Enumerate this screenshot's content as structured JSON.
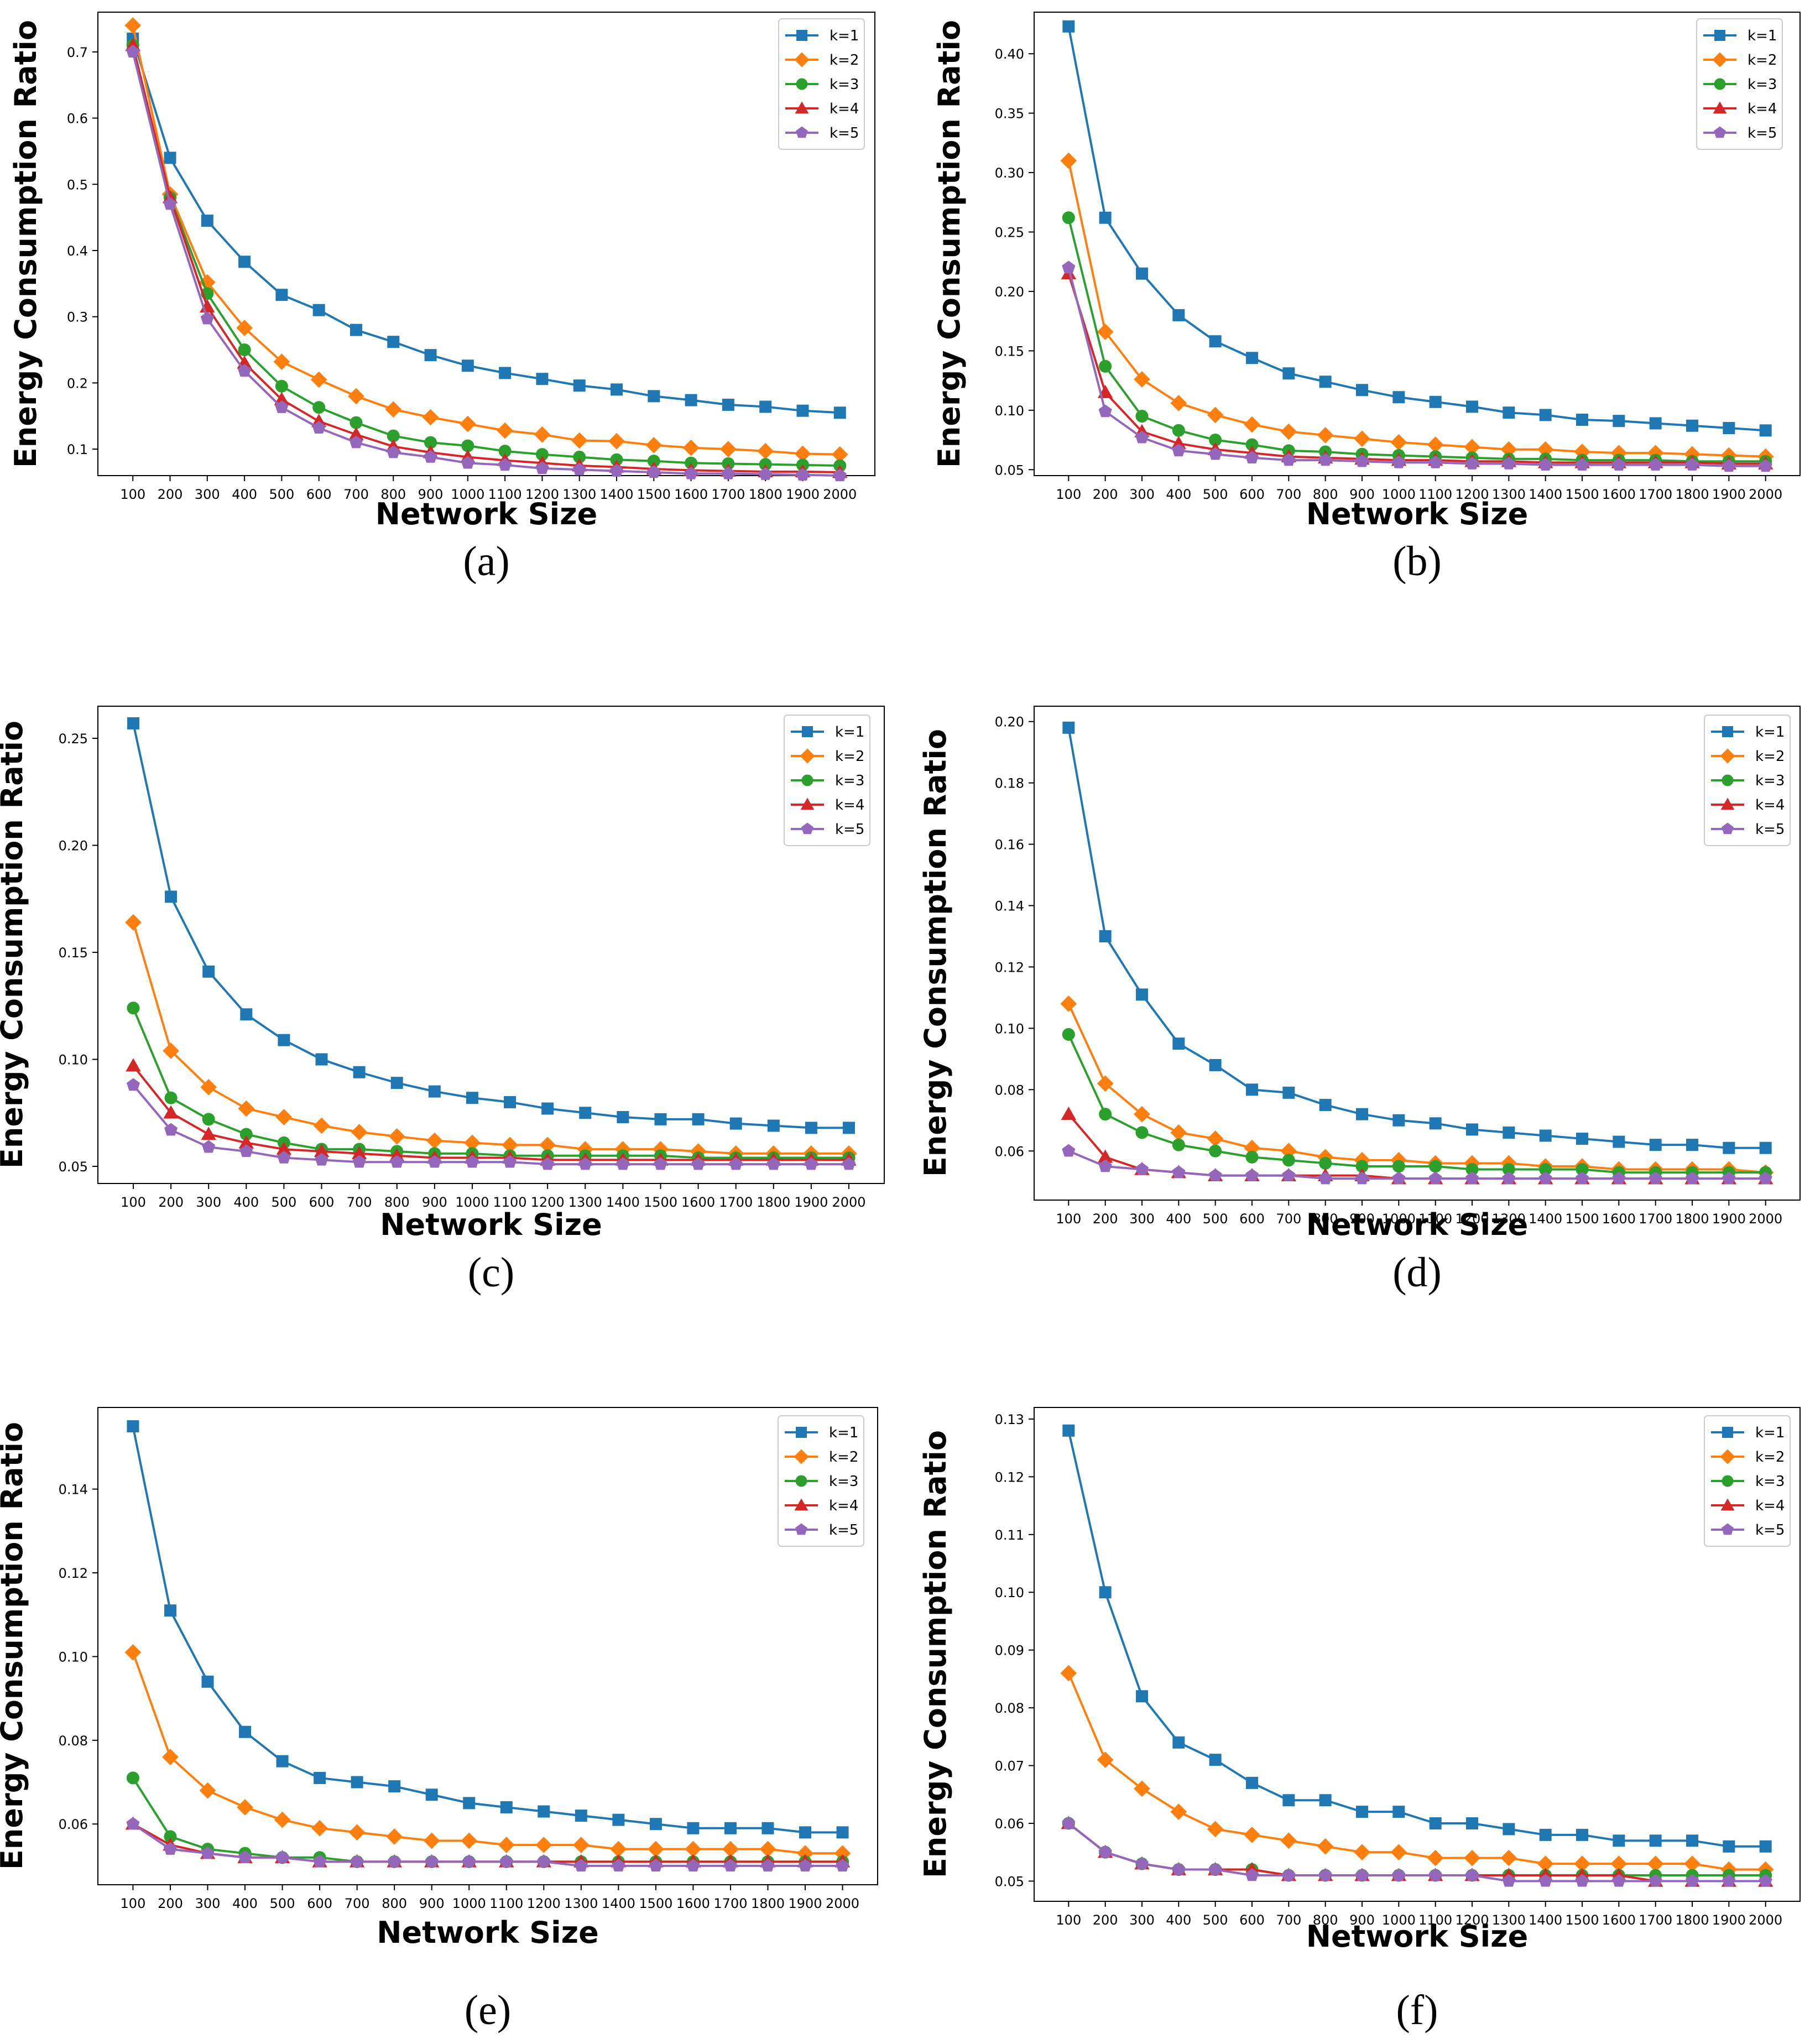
{
  "chart_data": [
    {
      "panel": "(a)",
      "type": "line",
      "xlabel": "Network Size",
      "ylabel": "Energy Consumption Ratio",
      "x": [
        100,
        200,
        300,
        400,
        500,
        600,
        700,
        800,
        900,
        1000,
        1100,
        1200,
        1300,
        1400,
        1500,
        1600,
        1700,
        1800,
        1900,
        2000
      ],
      "ylim": [
        0.06,
        0.76
      ],
      "yticks": [
        "0.1",
        "0.2",
        "0.3",
        "0.4",
        "0.5",
        "0.6",
        "0.7"
      ],
      "legend_position": "top-right",
      "series": [
        {
          "name": "k=1",
          "color": "#1f77b4",
          "marker": "square",
          "values": [
            0.72,
            0.54,
            0.445,
            0.383,
            0.333,
            0.31,
            0.28,
            0.262,
            0.242,
            0.226,
            0.215,
            0.206,
            0.196,
            0.19,
            0.18,
            0.174,
            0.167,
            0.164,
            0.158,
            0.155
          ]
        },
        {
          "name": "k=2",
          "color": "#ff7f0e",
          "marker": "diamond",
          "values": [
            0.74,
            0.485,
            0.352,
            0.283,
            0.232,
            0.205,
            0.18,
            0.16,
            0.148,
            0.138,
            0.128,
            0.122,
            0.113,
            0.112,
            0.106,
            0.102,
            0.1,
            0.097,
            0.093,
            0.092
          ]
        },
        {
          "name": "k=3",
          "color": "#2ca02c",
          "marker": "circle",
          "values": [
            0.71,
            0.48,
            0.335,
            0.25,
            0.195,
            0.163,
            0.14,
            0.12,
            0.11,
            0.105,
            0.097,
            0.092,
            0.088,
            0.084,
            0.082,
            0.079,
            0.078,
            0.077,
            0.076,
            0.075
          ]
        },
        {
          "name": "k=4",
          "color": "#d62728",
          "marker": "triangle",
          "values": [
            0.71,
            0.48,
            0.315,
            0.23,
            0.175,
            0.142,
            0.122,
            0.104,
            0.095,
            0.088,
            0.083,
            0.079,
            0.075,
            0.073,
            0.07,
            0.068,
            0.067,
            0.066,
            0.066,
            0.065
          ]
        },
        {
          "name": "k=5",
          "color": "#9467bd",
          "marker": "pentagon",
          "values": [
            0.7,
            0.47,
            0.297,
            0.218,
            0.163,
            0.132,
            0.11,
            0.095,
            0.088,
            0.079,
            0.076,
            0.071,
            0.069,
            0.067,
            0.065,
            0.063,
            0.063,
            0.062,
            0.061,
            0.06
          ]
        }
      ]
    },
    {
      "panel": "(b)",
      "type": "line",
      "xlabel": "Network Size",
      "ylabel": "Energy Consumption Ratio",
      "x": [
        100,
        200,
        300,
        400,
        500,
        600,
        700,
        800,
        900,
        1000,
        1100,
        1200,
        1300,
        1400,
        1500,
        1600,
        1700,
        1800,
        1900,
        2000
      ],
      "ylim": [
        0.045,
        0.435
      ],
      "yticks": [
        "0.05",
        "0.10",
        "0.15",
        "0.20",
        "0.25",
        "0.30",
        "0.35",
        "0.40"
      ],
      "legend_position": "top-right",
      "series": [
        {
          "name": "k=1",
          "color": "#1f77b4",
          "marker": "square",
          "values": [
            0.423,
            0.262,
            0.215,
            0.18,
            0.158,
            0.144,
            0.131,
            0.124,
            0.117,
            0.111,
            0.107,
            0.103,
            0.098,
            0.096,
            0.092,
            0.091,
            0.089,
            0.087,
            0.085,
            0.083
          ]
        },
        {
          "name": "k=2",
          "color": "#ff7f0e",
          "marker": "diamond",
          "values": [
            0.31,
            0.166,
            0.126,
            0.106,
            0.096,
            0.088,
            0.082,
            0.079,
            0.076,
            0.073,
            0.071,
            0.069,
            0.067,
            0.067,
            0.065,
            0.064,
            0.064,
            0.063,
            0.062,
            0.061
          ]
        },
        {
          "name": "k=3",
          "color": "#2ca02c",
          "marker": "circle",
          "values": [
            0.262,
            0.137,
            0.095,
            0.083,
            0.075,
            0.071,
            0.066,
            0.065,
            0.063,
            0.062,
            0.061,
            0.06,
            0.059,
            0.059,
            0.058,
            0.058,
            0.058,
            0.057,
            0.057,
            0.057
          ]
        },
        {
          "name": "k=4",
          "color": "#d62728",
          "marker": "triangle",
          "values": [
            0.215,
            0.115,
            0.082,
            0.072,
            0.067,
            0.064,
            0.061,
            0.06,
            0.059,
            0.058,
            0.058,
            0.057,
            0.057,
            0.056,
            0.056,
            0.056,
            0.056,
            0.056,
            0.055,
            0.055
          ]
        },
        {
          "name": "k=5",
          "color": "#9467bd",
          "marker": "pentagon",
          "values": [
            0.22,
            0.099,
            0.077,
            0.066,
            0.063,
            0.06,
            0.058,
            0.058,
            0.057,
            0.056,
            0.056,
            0.055,
            0.055,
            0.054,
            0.054,
            0.054,
            0.054,
            0.054,
            0.053,
            0.053
          ]
        }
      ]
    },
    {
      "panel": "(c)",
      "type": "line",
      "xlabel": "Network Size",
      "ylabel": "Energy Consumption Ratio",
      "x": [
        100,
        200,
        300,
        400,
        500,
        600,
        700,
        800,
        900,
        1000,
        1100,
        1200,
        1300,
        1400,
        1500,
        1600,
        1700,
        1800,
        1900,
        2000
      ],
      "ylim": [
        0.042,
        0.265
      ],
      "yticks": [
        "0.05",
        "0.10",
        "0.15",
        "0.20",
        "0.25"
      ],
      "legend_position": "top-right",
      "series": [
        {
          "name": "k=1",
          "color": "#1f77b4",
          "marker": "square",
          "values": [
            0.257,
            0.176,
            0.141,
            0.121,
            0.109,
            0.1,
            0.094,
            0.089,
            0.085,
            0.082,
            0.08,
            0.077,
            0.075,
            0.073,
            0.072,
            0.072,
            0.07,
            0.069,
            0.068,
            0.068
          ]
        },
        {
          "name": "k=2",
          "color": "#ff7f0e",
          "marker": "diamond",
          "values": [
            0.164,
            0.104,
            0.087,
            0.077,
            0.073,
            0.069,
            0.066,
            0.064,
            0.062,
            0.061,
            0.06,
            0.06,
            0.058,
            0.058,
            0.058,
            0.057,
            0.056,
            0.056,
            0.056,
            0.056
          ]
        },
        {
          "name": "k=3",
          "color": "#2ca02c",
          "marker": "circle",
          "values": [
            0.124,
            0.082,
            0.072,
            0.065,
            0.061,
            0.058,
            0.058,
            0.057,
            0.056,
            0.056,
            0.055,
            0.055,
            0.055,
            0.055,
            0.055,
            0.054,
            0.054,
            0.054,
            0.054,
            0.054
          ]
        },
        {
          "name": "k=4",
          "color": "#d62728",
          "marker": "triangle",
          "values": [
            0.097,
            0.075,
            0.065,
            0.061,
            0.058,
            0.057,
            0.056,
            0.055,
            0.054,
            0.054,
            0.054,
            0.053,
            0.053,
            0.053,
            0.053,
            0.053,
            0.053,
            0.053,
            0.053,
            0.053
          ]
        },
        {
          "name": "k=5",
          "color": "#9467bd",
          "marker": "pentagon",
          "values": [
            0.088,
            0.067,
            0.059,
            0.057,
            0.054,
            0.053,
            0.052,
            0.052,
            0.052,
            0.052,
            0.052,
            0.051,
            0.051,
            0.051,
            0.051,
            0.051,
            0.051,
            0.051,
            0.051,
            0.051
          ]
        }
      ]
    },
    {
      "panel": "(d)",
      "type": "line",
      "xlabel": "Network Size",
      "ylabel": "Energy Consumption Ratio",
      "x": [
        100,
        200,
        300,
        400,
        500,
        600,
        700,
        800,
        900,
        1000,
        1100,
        1200,
        1300,
        1400,
        1500,
        1600,
        1700,
        1800,
        1900,
        2000
      ],
      "ylim": [
        0.044,
        0.205
      ],
      "yticks": [
        "0.06",
        "0.08",
        "0.10",
        "0.12",
        "0.14",
        "0.16",
        "0.18",
        "0.20"
      ],
      "legend_position": "top-right",
      "series": [
        {
          "name": "k=1",
          "color": "#1f77b4",
          "marker": "square",
          "values": [
            0.198,
            0.13,
            0.111,
            0.095,
            0.088,
            0.08,
            0.079,
            0.075,
            0.072,
            0.07,
            0.069,
            0.067,
            0.066,
            0.065,
            0.064,
            0.063,
            0.062,
            0.062,
            0.061,
            0.061
          ]
        },
        {
          "name": "k=2",
          "color": "#ff7f0e",
          "marker": "diamond",
          "values": [
            0.108,
            0.082,
            0.072,
            0.066,
            0.064,
            0.061,
            0.06,
            0.058,
            0.057,
            0.057,
            0.056,
            0.056,
            0.056,
            0.055,
            0.055,
            0.054,
            0.054,
            0.054,
            0.054,
            0.053
          ]
        },
        {
          "name": "k=3",
          "color": "#2ca02c",
          "marker": "circle",
          "values": [
            0.098,
            0.072,
            0.066,
            0.062,
            0.06,
            0.058,
            0.057,
            0.056,
            0.055,
            0.055,
            0.055,
            0.054,
            0.054,
            0.054,
            0.054,
            0.053,
            0.053,
            0.053,
            0.053,
            0.053
          ]
        },
        {
          "name": "k=4",
          "color": "#d62728",
          "marker": "triangle",
          "values": [
            0.072,
            0.058,
            0.054,
            0.053,
            0.052,
            0.052,
            0.052,
            0.052,
            0.052,
            0.051,
            0.051,
            0.051,
            0.051,
            0.051,
            0.051,
            0.051,
            0.051,
            0.051,
            0.051,
            0.051
          ]
        },
        {
          "name": "k=5",
          "color": "#9467bd",
          "marker": "pentagon",
          "values": [
            0.06,
            0.055,
            0.054,
            0.053,
            0.052,
            0.052,
            0.052,
            0.051,
            0.051,
            0.051,
            0.051,
            0.051,
            0.051,
            0.051,
            0.051,
            0.051,
            0.051,
            0.051,
            0.051,
            0.051
          ]
        }
      ]
    },
    {
      "panel": "(e)",
      "type": "line",
      "xlabel": "Network Size",
      "ylabel": "Energy Consumption Ratio",
      "x": [
        100,
        200,
        300,
        400,
        500,
        600,
        700,
        800,
        900,
        1000,
        1100,
        1200,
        1300,
        1400,
        1500,
        1600,
        1700,
        1800,
        1900,
        2000
      ],
      "ylim": [
        0.0455,
        0.1595
      ],
      "yticks": [
        "0.06",
        "0.08",
        "0.10",
        "0.12",
        "0.14"
      ],
      "legend_position": "top-right",
      "series": [
        {
          "name": "k=1",
          "color": "#1f77b4",
          "marker": "square",
          "values": [
            0.155,
            0.111,
            0.094,
            0.082,
            0.075,
            0.071,
            0.07,
            0.069,
            0.067,
            0.065,
            0.064,
            0.063,
            0.062,
            0.061,
            0.06,
            0.059,
            0.059,
            0.059,
            0.058,
            0.058
          ]
        },
        {
          "name": "k=2",
          "color": "#ff7f0e",
          "marker": "diamond",
          "values": [
            0.101,
            0.076,
            0.068,
            0.064,
            0.061,
            0.059,
            0.058,
            0.057,
            0.056,
            0.056,
            0.055,
            0.055,
            0.055,
            0.054,
            0.054,
            0.054,
            0.054,
            0.054,
            0.053,
            0.053
          ]
        },
        {
          "name": "k=3",
          "color": "#2ca02c",
          "marker": "circle",
          "values": [
            0.071,
            0.057,
            0.054,
            0.053,
            0.052,
            0.052,
            0.051,
            0.051,
            0.051,
            0.051,
            0.051,
            0.051,
            0.051,
            0.051,
            0.051,
            0.051,
            0.051,
            0.051,
            0.051,
            0.051
          ]
        },
        {
          "name": "k=4",
          "color": "#d62728",
          "marker": "triangle",
          "values": [
            0.06,
            0.055,
            0.053,
            0.052,
            0.052,
            0.051,
            0.051,
            0.051,
            0.051,
            0.051,
            0.051,
            0.051,
            0.051,
            0.051,
            0.051,
            0.051,
            0.051,
            0.051,
            0.051,
            0.051
          ]
        },
        {
          "name": "k=5",
          "color": "#9467bd",
          "marker": "pentagon",
          "values": [
            0.06,
            0.054,
            0.053,
            0.052,
            0.052,
            0.051,
            0.051,
            0.051,
            0.051,
            0.051,
            0.051,
            0.051,
            0.05,
            0.05,
            0.05,
            0.05,
            0.05,
            0.05,
            0.05,
            0.05
          ]
        }
      ]
    },
    {
      "panel": "(f)",
      "type": "line",
      "xlabel": "Network Size",
      "ylabel": "Energy Consumption Ratio",
      "x": [
        100,
        200,
        300,
        400,
        500,
        600,
        700,
        800,
        900,
        1000,
        1100,
        1200,
        1300,
        1400,
        1500,
        1600,
        1700,
        1800,
        1900,
        2000
      ],
      "ylim": [
        0.0465,
        0.132
      ],
      "yticks": [
        "0.05",
        "0.06",
        "0.07",
        "0.08",
        "0.09",
        "0.10",
        "0.11",
        "0.12",
        "0.13"
      ],
      "legend_position": "top-right",
      "series": [
        {
          "name": "k=1",
          "color": "#1f77b4",
          "marker": "square",
          "values": [
            0.128,
            0.1,
            0.082,
            0.074,
            0.071,
            0.067,
            0.064,
            0.064,
            0.062,
            0.062,
            0.06,
            0.06,
            0.059,
            0.058,
            0.058,
            0.057,
            0.057,
            0.057,
            0.056,
            0.056
          ]
        },
        {
          "name": "k=2",
          "color": "#ff7f0e",
          "marker": "diamond",
          "values": [
            0.086,
            0.071,
            0.066,
            0.062,
            0.059,
            0.058,
            0.057,
            0.056,
            0.055,
            0.055,
            0.054,
            0.054,
            0.054,
            0.053,
            0.053,
            0.053,
            0.053,
            0.053,
            0.052,
            0.052
          ]
        },
        {
          "name": "k=3",
          "color": "#2ca02c",
          "marker": "circle",
          "values": [
            0.06,
            0.055,
            0.053,
            0.052,
            0.052,
            0.052,
            0.051,
            0.051,
            0.051,
            0.051,
            0.051,
            0.051,
            0.051,
            0.051,
            0.051,
            0.051,
            0.051,
            0.051,
            0.051,
            0.051
          ]
        },
        {
          "name": "k=4",
          "color": "#d62728",
          "marker": "triangle",
          "values": [
            0.06,
            0.055,
            0.053,
            0.052,
            0.052,
            0.052,
            0.051,
            0.051,
            0.051,
            0.051,
            0.051,
            0.051,
            0.051,
            0.051,
            0.051,
            0.051,
            0.05,
            0.05,
            0.05,
            0.05
          ]
        },
        {
          "name": "k=5",
          "color": "#9467bd",
          "marker": "pentagon",
          "values": [
            0.06,
            0.055,
            0.053,
            0.052,
            0.052,
            0.051,
            0.051,
            0.051,
            0.051,
            0.051,
            0.051,
            0.051,
            0.05,
            0.05,
            0.05,
            0.05,
            0.05,
            0.05,
            0.05,
            0.05
          ]
        }
      ]
    }
  ]
}
